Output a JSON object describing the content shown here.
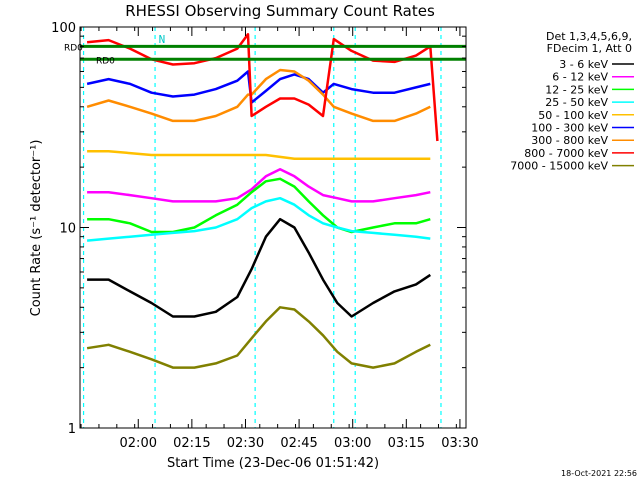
{
  "chart_data": {
    "type": "line",
    "title": "RHESSI Observing Summary Count Rates",
    "xlabel": "Start Time (23-Dec-06 01:51:42)",
    "ylabel": "Count Rate (s⁻¹ detector⁻¹)",
    "yscale": "log",
    "ylim": [
      1,
      100
    ],
    "y_ticks": [
      "1",
      "10",
      "100"
    ],
    "xlim_minutes": [
      -8,
      100
    ],
    "x_ticks": [
      "02:00",
      "02:15",
      "02:30",
      "02:45",
      "03:00",
      "03:15",
      "03:30"
    ],
    "legend_header": [
      "Det 1,3,4,5,6,9,",
      "FDecim 1, Att 0"
    ],
    "legend_placement": "right",
    "timestamp": "18-Oct-2021 22:56",
    "series": [
      {
        "name": "3 - 6 keV",
        "color": "#000000",
        "points": [
          [
            -6,
            5.5
          ],
          [
            0,
            5.5
          ],
          [
            6,
            4.8
          ],
          [
            12,
            4.2
          ],
          [
            18,
            3.6
          ],
          [
            24,
            3.6
          ],
          [
            30,
            3.8
          ],
          [
            36,
            4.5
          ],
          [
            40,
            6.2
          ],
          [
            44,
            9.0
          ],
          [
            48,
            11
          ],
          [
            52,
            10
          ],
          [
            56,
            7.5
          ],
          [
            60,
            5.5
          ],
          [
            64,
            4.2
          ],
          [
            68,
            3.6
          ],
          [
            74,
            4.2
          ],
          [
            80,
            4.8
          ],
          [
            86,
            5.2
          ],
          [
            90,
            5.8
          ]
        ]
      },
      {
        "name": "6 - 12 keV",
        "color": "#ff00ff",
        "points": [
          [
            -6,
            15
          ],
          [
            0,
            15
          ],
          [
            6,
            14.5
          ],
          [
            12,
            14
          ],
          [
            18,
            13.5
          ],
          [
            24,
            13.5
          ],
          [
            30,
            13.5
          ],
          [
            36,
            14
          ],
          [
            40,
            15.5
          ],
          [
            44,
            18
          ],
          [
            48,
            19.5
          ],
          [
            52,
            18
          ],
          [
            56,
            16
          ],
          [
            60,
            14.5
          ],
          [
            64,
            14
          ],
          [
            68,
            13.5
          ],
          [
            74,
            13.5
          ],
          [
            80,
            14
          ],
          [
            86,
            14.5
          ],
          [
            90,
            15
          ]
        ]
      },
      {
        "name": "12 - 25 keV",
        "color": "#00ff00",
        "points": [
          [
            -6,
            11
          ],
          [
            0,
            11
          ],
          [
            6,
            10.5
          ],
          [
            12,
            9.5
          ],
          [
            18,
            9.5
          ],
          [
            24,
            10
          ],
          [
            30,
            11.5
          ],
          [
            36,
            13
          ],
          [
            40,
            15
          ],
          [
            44,
            17
          ],
          [
            48,
            17.5
          ],
          [
            52,
            16
          ],
          [
            56,
            13.5
          ],
          [
            60,
            11.5
          ],
          [
            64,
            10
          ],
          [
            68,
            9.5
          ],
          [
            74,
            10
          ],
          [
            80,
            10.5
          ],
          [
            86,
            10.5
          ],
          [
            90,
            11
          ]
        ]
      },
      {
        "name": "25 - 50 keV",
        "color": "#00ffff",
        "points": [
          [
            -6,
            8.6
          ],
          [
            0,
            8.8
          ],
          [
            6,
            9
          ],
          [
            12,
            9.2
          ],
          [
            18,
            9.4
          ],
          [
            24,
            9.6
          ],
          [
            30,
            10
          ],
          [
            36,
            11
          ],
          [
            40,
            12.5
          ],
          [
            44,
            13.5
          ],
          [
            48,
            14
          ],
          [
            52,
            13
          ],
          [
            56,
            11.5
          ],
          [
            60,
            10.5
          ],
          [
            64,
            10
          ],
          [
            68,
            9.6
          ],
          [
            74,
            9.4
          ],
          [
            80,
            9.2
          ],
          [
            86,
            9
          ],
          [
            90,
            8.8
          ]
        ]
      },
      {
        "name": "50 - 100 keV",
        "color": "#ffc000",
        "points": [
          [
            -6,
            24
          ],
          [
            0,
            24
          ],
          [
            6,
            23.5
          ],
          [
            12,
            23
          ],
          [
            18,
            23
          ],
          [
            24,
            23
          ],
          [
            30,
            23
          ],
          [
            36,
            23
          ],
          [
            40,
            23
          ],
          [
            44,
            23
          ],
          [
            48,
            22.5
          ],
          [
            52,
            22
          ],
          [
            56,
            22
          ],
          [
            60,
            22
          ],
          [
            64,
            22
          ],
          [
            68,
            22
          ],
          [
            74,
            22
          ],
          [
            80,
            22
          ],
          [
            86,
            22
          ],
          [
            90,
            22
          ]
        ]
      },
      {
        "name": "100 - 300 keV",
        "color": "#0000ff",
        "points": [
          [
            -6,
            52
          ],
          [
            0,
            55
          ],
          [
            6,
            52
          ],
          [
            12,
            47
          ],
          [
            18,
            45
          ],
          [
            24,
            46
          ],
          [
            30,
            49
          ],
          [
            36,
            54
          ],
          [
            39,
            60
          ],
          [
            40,
            42
          ],
          [
            44,
            48
          ],
          [
            48,
            55
          ],
          [
            52,
            58
          ],
          [
            56,
            55
          ],
          [
            60,
            47
          ],
          [
            63,
            52
          ],
          [
            68,
            49
          ],
          [
            74,
            47
          ],
          [
            80,
            47
          ],
          [
            86,
            50
          ],
          [
            90,
            52
          ]
        ]
      },
      {
        "name": "300 - 800 keV",
        "color": "#ff8c00",
        "points": [
          [
            -6,
            40
          ],
          [
            0,
            43
          ],
          [
            6,
            40
          ],
          [
            12,
            37
          ],
          [
            18,
            34
          ],
          [
            24,
            34
          ],
          [
            30,
            36
          ],
          [
            36,
            40
          ],
          [
            39,
            46
          ],
          [
            40,
            46
          ],
          [
            44,
            55
          ],
          [
            48,
            61
          ],
          [
            52,
            60
          ],
          [
            56,
            54
          ],
          [
            60,
            46
          ],
          [
            63,
            40
          ],
          [
            68,
            37
          ],
          [
            74,
            34
          ],
          [
            80,
            34
          ],
          [
            86,
            37
          ],
          [
            90,
            40
          ]
        ]
      },
      {
        "name": "800 - 7000 keV",
        "color": "#ff0000",
        "points": [
          [
            -6,
            84
          ],
          [
            0,
            86
          ],
          [
            6,
            78
          ],
          [
            12,
            69
          ],
          [
            18,
            65
          ],
          [
            24,
            66
          ],
          [
            30,
            70
          ],
          [
            36,
            78
          ],
          [
            39,
            92
          ],
          [
            40,
            36
          ],
          [
            44,
            40
          ],
          [
            48,
            44
          ],
          [
            52,
            44
          ],
          [
            56,
            41
          ],
          [
            60,
            36
          ],
          [
            63,
            87
          ],
          [
            68,
            76
          ],
          [
            74,
            68
          ],
          [
            80,
            67
          ],
          [
            86,
            72
          ],
          [
            90,
            80
          ],
          [
            92,
            27
          ]
        ]
      },
      {
        "name": "7000 - 15000 keV",
        "color": "#808000",
        "points": [
          [
            -6,
            2.5
          ],
          [
            0,
            2.6
          ],
          [
            6,
            2.4
          ],
          [
            12,
            2.2
          ],
          [
            18,
            2.0
          ],
          [
            24,
            2.0
          ],
          [
            30,
            2.1
          ],
          [
            36,
            2.3
          ],
          [
            40,
            2.8
          ],
          [
            44,
            3.4
          ],
          [
            48,
            4.0
          ],
          [
            52,
            3.9
          ],
          [
            56,
            3.4
          ],
          [
            60,
            2.9
          ],
          [
            64,
            2.4
          ],
          [
            68,
            2.1
          ],
          [
            74,
            2.0
          ],
          [
            80,
            2.1
          ],
          [
            86,
            2.4
          ],
          [
            90,
            2.6
          ]
        ]
      }
    ],
    "flag_bars": [
      {
        "label": "RD0",
        "color": "#008000",
        "value": 69
      },
      {
        "label": "RD0",
        "color": "#008000",
        "value": 80
      }
    ],
    "night_markers_minutes": [
      -7,
      13,
      41,
      63,
      69,
      93
    ],
    "saa_label": "N"
  }
}
